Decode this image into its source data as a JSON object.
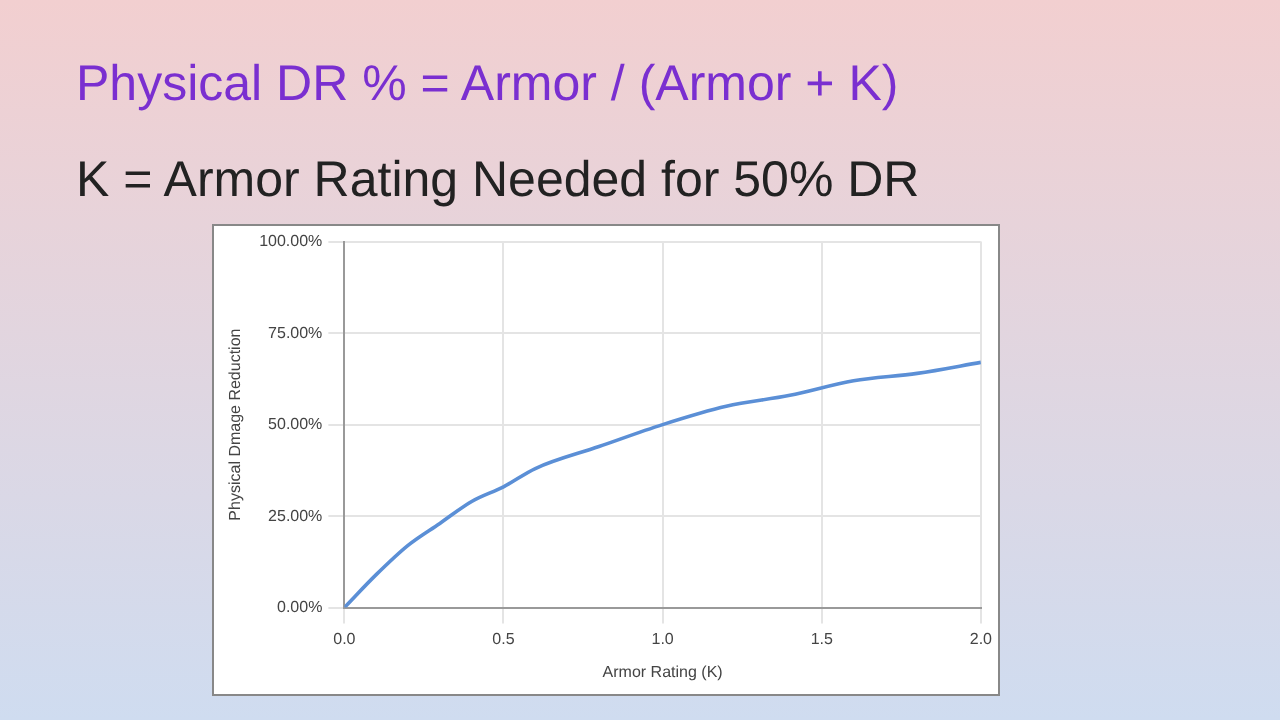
{
  "chart_data": {
    "type": "line",
    "title": "Physical DR % = Armor / (Armor + K)",
    "subtitle": "K = Armor Rating Needed for 50% DR",
    "xlabel": "Armor Rating (K)",
    "ylabel": "Physical Dmage Reduction",
    "x": [
      0,
      0.1,
      0.2,
      0.3,
      0.4,
      0.5,
      0.6,
      0.8,
      1.0,
      1.2,
      1.4,
      1.6,
      1.8,
      2.0
    ],
    "series": [
      {
        "color": "#5b8fd6",
        "values": [
          0,
          9,
          17,
          23,
          29,
          33,
          38,
          44,
          50,
          55,
          58,
          62,
          64,
          67
        ]
      }
    ],
    "xlim": [
      0,
      2
    ],
    "xticks": [
      {
        "value": 0,
        "label": "0.0"
      },
      {
        "value": 0.5,
        "label": "0.5"
      },
      {
        "value": 1,
        "label": "1.0"
      },
      {
        "value": 1.5,
        "label": "1.5"
      },
      {
        "value": 2,
        "label": "2.0"
      }
    ],
    "ylim": [
      0,
      100
    ],
    "yticks": [
      {
        "value": 0,
        "label": "0.00%"
      },
      {
        "value": 25,
        "label": "25.00%"
      },
      {
        "value": 50,
        "label": "50.00%"
      },
      {
        "value": 75,
        "label": "75.00%"
      },
      {
        "value": 100,
        "label": "100.00%"
      }
    ],
    "grid": true,
    "legend": false,
    "marker": "none",
    "line_style": "solid"
  }
}
